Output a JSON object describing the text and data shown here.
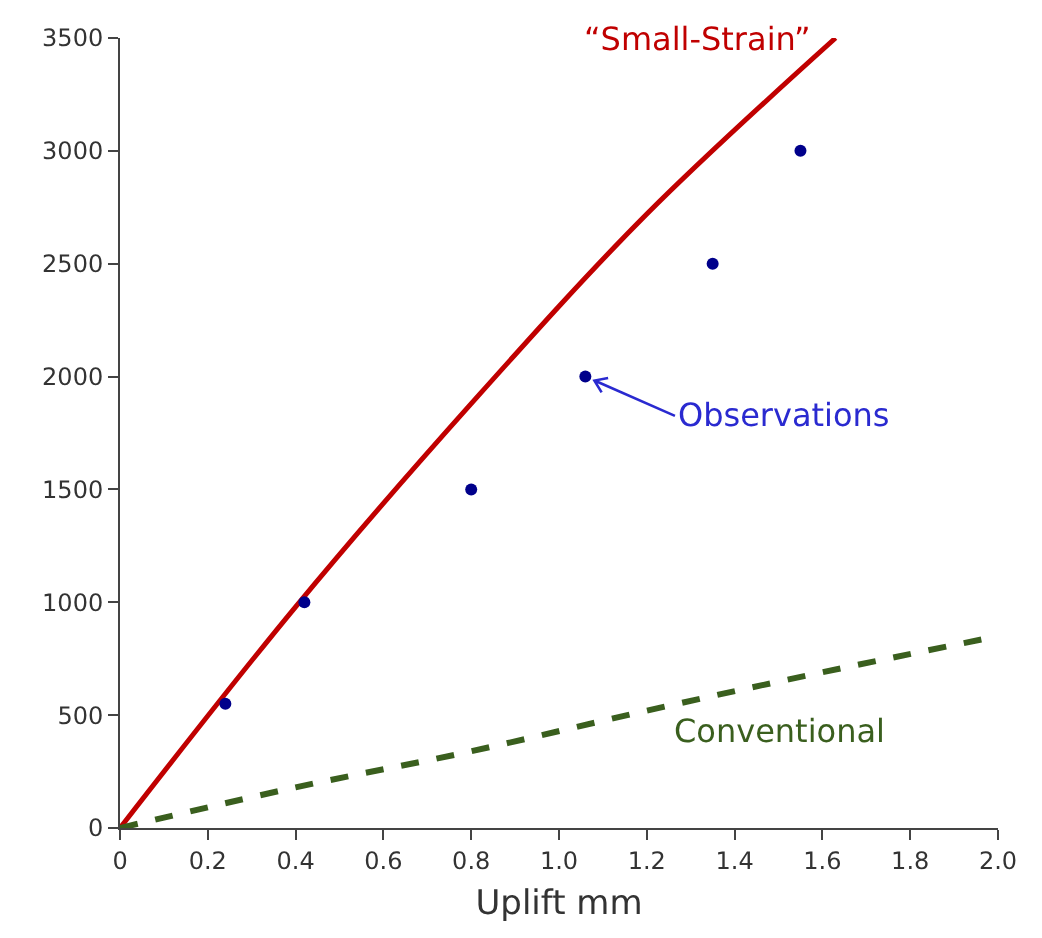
{
  "chart_data": {
    "type": "line",
    "xlabel": "Uplift mm",
    "xlim": [
      0,
      2.0
    ],
    "xticks": [
      0,
      0.2,
      0.4,
      0.6,
      0.8,
      {
        "value": 1.0,
        "label": "1.0"
      },
      1.2,
      1.4,
      1.6,
      1.8,
      {
        "value": 2.0,
        "label": "2.0"
      }
    ],
    "ylim": [
      0,
      3500
    ],
    "yticks": [
      0,
      500,
      1000,
      1500,
      2000,
      2500,
      3000,
      3500
    ],
    "legend": false,
    "series": [
      {
        "name": "“Small-Strain”",
        "color": "#c00000",
        "line_style": "solid",
        "x": [
          0,
          0.4,
          0.8,
          1.2,
          1.63
        ],
        "values": [
          0,
          980,
          1880,
          2720,
          3500
        ]
      },
      {
        "name": "Conventional",
        "color": "#3a5f1e",
        "line_style": "dashed",
        "x": [
          0,
          0.4,
          0.8,
          1.2,
          1.6,
          2.0
        ],
        "values": [
          0,
          180,
          340,
          520,
          690,
          850
        ]
      },
      {
        "type": "scatter",
        "marker": "circle",
        "color": "#00008b",
        "x": [
          0.24,
          0.42,
          0.8,
          1.06,
          1.35,
          1.55
        ],
        "values": [
          550,
          1000,
          1500,
          2000,
          2500,
          3000
        ]
      }
    ],
    "annotations": [
      {
        "text": "Observations",
        "x": 1.06,
        "y": 2000
      }
    ]
  }
}
